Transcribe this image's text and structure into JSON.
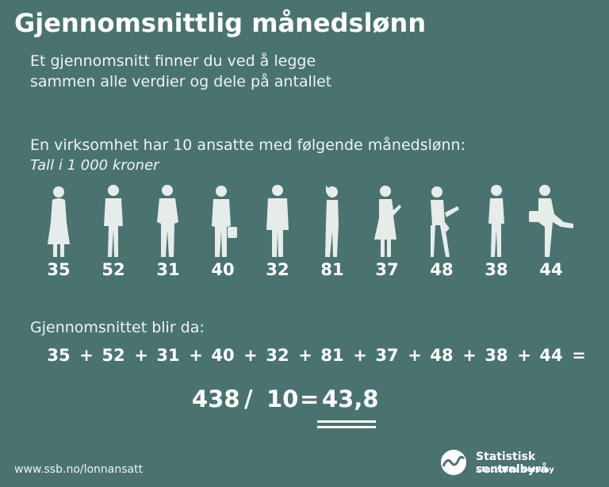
{
  "title": "Gjennomsnittlig månedslønn",
  "subtitle_line1": "Et gjennomsnitt finner du ved å legge",
  "subtitle_line2": "sammen alle verdier og dele på antallet",
  "intro": "En virksomhet har 10 ansatte med følgende månedslønn:",
  "unit_note": "Tall i 1 000 kroner",
  "salaries": [
    "35",
    "52",
    "31",
    "40",
    "32",
    "81",
    "37",
    "48",
    "38",
    "44"
  ],
  "result_label": "Gjennomsnittet blir da:",
  "plus": "+",
  "equals": "=",
  "sum": "438",
  "divide": "/",
  "count": "10",
  "average": "43,8",
  "url": "www.ssb.no/lonnansatt",
  "brand_name": "Statistisk sentralbyrå",
  "brand_sub": "Statistics Norway",
  "colors": {
    "background": "#4a7370",
    "figure": "#e6ecea",
    "text": "#ffffff"
  }
}
